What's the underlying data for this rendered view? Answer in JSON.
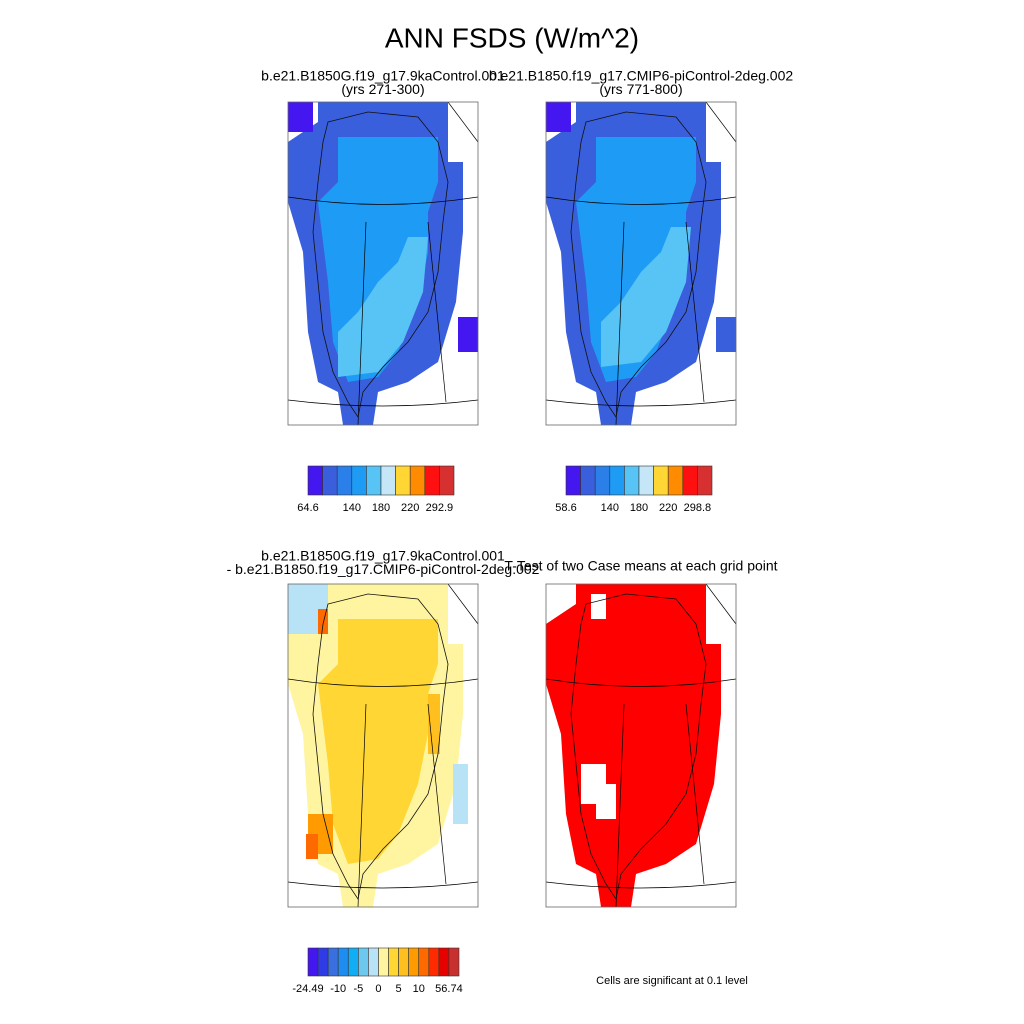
{
  "title": "ANN FSDS (W/m^2)",
  "panels": [
    {
      "title": [
        "b.e21.B1850G.f19_g17.9kaControl.001",
        "(yrs 271-300)"
      ],
      "colorbar": {
        "colors": [
          "#4416f0",
          "#3a5fdc",
          "#2a7fe8",
          "#1e9cf5",
          "#57c4f5",
          "#c4e6f7",
          "#ffd633",
          "#ff8c00",
          "#ff1010",
          "#d63030"
        ],
        "labels": [
          64.6,
          140,
          180,
          220,
          292.9
        ]
      }
    },
    {
      "title": [
        "b.e21.B1850.f19_g17.CMIP6-piControl-2deg.002",
        "(yrs 771-800)"
      ],
      "colorbar": {
        "colors": [
          "#4416f0",
          "#3a5fdc",
          "#2a7fe8",
          "#1e9cf5",
          "#57c4f5",
          "#c4e6f7",
          "#ffd633",
          "#ff8c00",
          "#ff1010",
          "#d63030"
        ],
        "labels": [
          58.6,
          140,
          180,
          220,
          298.8
        ]
      }
    },
    {
      "title": [
        "b.e21.B1850G.f19_g17.9kaControl.001",
        "- b.e21.B1850.f19_g17.CMIP6-piControl-2deg.002"
      ],
      "colorbar": {
        "colors": [
          "#4416f0",
          "#2f3ce6",
          "#3a6fe0",
          "#1e8cf0",
          "#12aef5",
          "#6dc8f0",
          "#b8e2f5",
          "#fff5a0",
          "#ffd633",
          "#ffbf1f",
          "#ff9a00",
          "#ff6a00",
          "#ff2a00",
          "#e60000",
          "#c83030"
        ],
        "labels": [
          -24.49,
          -10,
          -5,
          0,
          5,
          10,
          56.74
        ]
      }
    },
    {
      "title": [
        "T-Test of two Case means at each grid point"
      ]
    }
  ],
  "note": "Cells are significant at 0.1 level"
}
